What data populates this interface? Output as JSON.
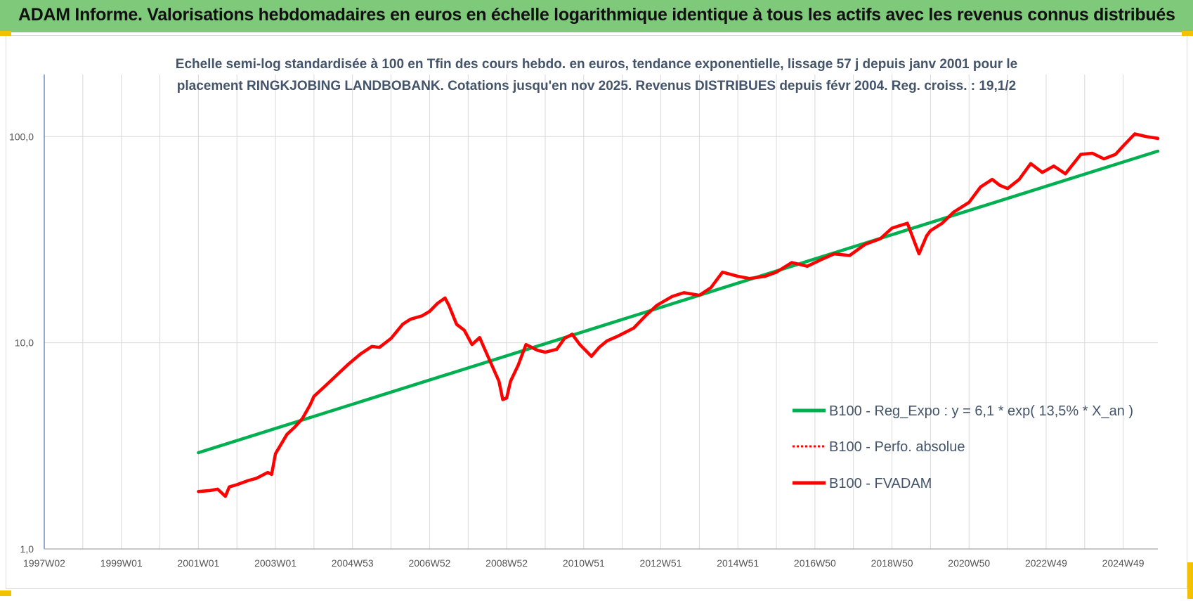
{
  "header": {
    "title": "ADAM Informe. Valorisations hebdomadaires en euros en échelle logarithmique identique à tous les actifs avec les revenus connus distribués"
  },
  "colors": {
    "banner": "#7ec97a",
    "trend": "#00b050",
    "series": "#ff0000",
    "grid": "#d9d9d9",
    "corner_accent": "#f2c200"
  },
  "chart_data": {
    "type": "line",
    "title_lines": [
      "Echelle semi-log standardisée à 100 en Tfin des cours hebdo. en euros, tendance exponentielle, lissage 57 j depuis janv 2001 pour le",
      "placement RINGKJOBING LANDBOBANK. Cotations jusqu'en nov 2025. Revenus DISTRIBUES depuis févr 2004. Reg. croiss. : 19,1/2"
    ],
    "y_scale": "log",
    "ylim": [
      1,
      200
    ],
    "y_ticks": [
      {
        "value": 1,
        "label": "1,0"
      },
      {
        "value": 10,
        "label": "10,0"
      },
      {
        "value": 100,
        "label": "100,0"
      }
    ],
    "xlim": [
      1997.0,
      2025.9
    ],
    "x_ticks": [
      {
        "value": 1997.0,
        "label": "1997W02"
      },
      {
        "value": 1999.0,
        "label": "1999W01"
      },
      {
        "value": 2001.0,
        "label": "2001W01"
      },
      {
        "value": 2003.0,
        "label": "2003W01"
      },
      {
        "value": 2005.0,
        "label": "2004W53"
      },
      {
        "value": 2007.0,
        "label": "2006W52"
      },
      {
        "value": 2009.0,
        "label": "2008W52"
      },
      {
        "value": 2011.0,
        "label": "2010W51"
      },
      {
        "value": 2013.0,
        "label": "2012W51"
      },
      {
        "value": 2015.0,
        "label": "2014W51"
      },
      {
        "value": 2017.0,
        "label": "2016W50"
      },
      {
        "value": 2019.0,
        "label": "2018W50"
      },
      {
        "value": 2021.0,
        "label": "2020W50"
      },
      {
        "value": 2023.0,
        "label": "2022W49"
      },
      {
        "value": 2025.0,
        "label": "2024W49"
      }
    ],
    "legend_position": "right",
    "series": [
      {
        "name": "B100 - Reg_Expo : y = 6,1 * exp( 13,5% *  X_an )",
        "style": "solid",
        "color": "#00b050",
        "x": [
          2001.0,
          2025.9
        ],
        "y": [
          2.93,
          85
        ]
      },
      {
        "name": "B100 - Perfo. absolue",
        "style": "dotted",
        "color": "#ff0000",
        "x": [],
        "y": []
      },
      {
        "name": "B100 - FVADAM",
        "style": "solid",
        "color": "#ff0000",
        "x": [
          2001.0,
          2001.3,
          2001.5,
          2001.7,
          2001.8,
          2002.0,
          2002.3,
          2002.5,
          2002.8,
          2002.9,
          2003.0,
          2003.3,
          2003.5,
          2003.7,
          2003.9,
          2004.0,
          2004.3,
          2004.6,
          2004.9,
          2005.2,
          2005.5,
          2005.7,
          2006.0,
          2006.3,
          2006.5,
          2006.8,
          2007.0,
          2007.2,
          2007.4,
          2007.5,
          2007.7,
          2007.9,
          2008.1,
          2008.3,
          2008.4,
          2008.6,
          2008.8,
          2008.9,
          2009.0,
          2009.1,
          2009.3,
          2009.5,
          2009.8,
          2010.0,
          2010.3,
          2010.5,
          2010.7,
          2010.9,
          2011.2,
          2011.4,
          2011.6,
          2011.9,
          2012.3,
          2012.6,
          2012.9,
          2013.3,
          2013.6,
          2014.0,
          2014.3,
          2014.6,
          2015.0,
          2015.3,
          2015.7,
          2016.0,
          2016.4,
          2016.8,
          2017.2,
          2017.5,
          2017.9,
          2018.3,
          2018.7,
          2019.0,
          2019.4,
          2019.7,
          2019.9,
          2020.0,
          2020.3,
          2020.6,
          2021.0,
          2021.3,
          2021.6,
          2021.8,
          2022.0,
          2022.3,
          2022.6,
          2022.9,
          2023.2,
          2023.5,
          2023.9,
          2024.2,
          2024.5,
          2024.8,
          2025.0,
          2025.3,
          2025.6,
          2025.9
        ],
        "y": [
          1.9,
          1.92,
          1.95,
          1.8,
          2.0,
          2.05,
          2.15,
          2.2,
          2.35,
          2.3,
          2.9,
          3.6,
          3.9,
          4.3,
          5.0,
          5.5,
          6.2,
          7.0,
          7.9,
          8.8,
          9.6,
          9.5,
          10.5,
          12.3,
          13.0,
          13.5,
          14.2,
          15.5,
          16.5,
          15.2,
          12.3,
          11.5,
          9.8,
          10.6,
          9.6,
          7.9,
          6.5,
          5.3,
          5.4,
          6.5,
          7.8,
          9.8,
          9.2,
          9.0,
          9.3,
          10.5,
          11.0,
          9.8,
          8.6,
          9.5,
          10.2,
          10.8,
          11.8,
          13.5,
          15.2,
          16.8,
          17.5,
          17.0,
          18.5,
          22.0,
          21.0,
          20.5,
          21.0,
          22.0,
          24.5,
          23.5,
          25.5,
          27.0,
          26.5,
          30.0,
          32.0,
          36.0,
          38.0,
          27.0,
          33.0,
          35.0,
          38.0,
          43.0,
          48.0,
          57.0,
          62.0,
          58.0,
          56.0,
          62.0,
          74.0,
          67.0,
          72.0,
          66.0,
          82.0,
          83.0,
          78.0,
          82.0,
          90.0,
          103.0,
          100.0,
          98.0
        ]
      }
    ]
  }
}
